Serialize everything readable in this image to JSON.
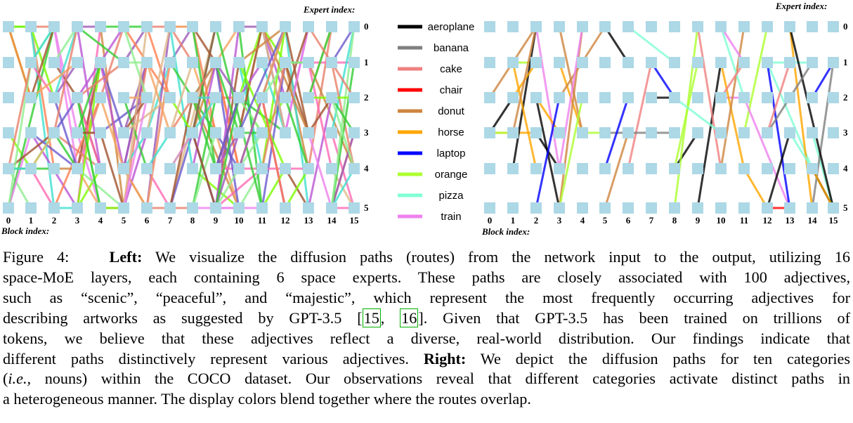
{
  "figure": {
    "left_panel": {
      "expert_axis_title": "Expert index:",
      "block_axis_title": "Block index:",
      "block_ticks": [
        "0",
        "1",
        "2",
        "3",
        "4",
        "5",
        "6",
        "7",
        "8",
        "9",
        "10",
        "11",
        "12",
        "13",
        "14",
        "15"
      ],
      "expert_ticks": [
        "0",
        "1",
        "2",
        "3",
        "4",
        "5"
      ]
    },
    "right_panel": {
      "expert_axis_title": "Expert index:",
      "block_axis_title": "Block index:",
      "block_ticks": [
        "0",
        "1",
        "2",
        "3",
        "4",
        "5",
        "6",
        "7",
        "8",
        "9",
        "10",
        "11",
        "12",
        "13",
        "14",
        "15"
      ],
      "expert_ticks": [
        "0",
        "1",
        "2",
        "3",
        "4",
        "5"
      ]
    },
    "legend": [
      {
        "label": "aeroplane",
        "color": "#000000"
      },
      {
        "label": "banana",
        "color": "#808080"
      },
      {
        "label": "cake",
        "color": "#f08080"
      },
      {
        "label": "chair",
        "color": "#ff0000"
      },
      {
        "label": "donut",
        "color": "#cd853f"
      },
      {
        "label": "horse",
        "color": "#ffa500"
      },
      {
        "label": "laptop",
        "color": "#0000ff"
      },
      {
        "label": "orange",
        "color": "#adff2f"
      },
      {
        "label": "pizza",
        "color": "#7fffd4"
      },
      {
        "label": "train",
        "color": "#ee82ee"
      }
    ],
    "node_color": "#add8e6"
  },
  "caption": {
    "line1_prefix": "Figure 4:",
    "line1_bold": "Left:",
    "line1_rest": "We visualize the diffusion paths (routes) from the network input to the output, utilizing 16",
    "line2": "space-MoE layers, each containing 6 space experts.  These paths are closely associated with 100 adjectives,",
    "line3": "such as “scenic”, “peaceful”, and “majestic”, which represent the most frequently occurring adjectives for",
    "line4_pre": "describing artworks as suggested by GPT-3.5 [",
    "ref1": "15",
    "ref_sep": ", ",
    "ref2": "16",
    "line4_post": "].  Given that GPT-3.5 has been trained on trillions of",
    "line5": "tokens, we believe that these adjectives reflect a diverse, real-world distribution.  Our findings indicate that",
    "line6_pre": "different paths distinctively represent various adjectives.",
    "line6_bold": "Right:",
    "line6_post": "We depict the diffusion paths for ten categories",
    "line7_open": "(",
    "line7_ital": "i.e.,",
    "line7_post": "nouns) within the COCO dataset. Our observations reveal that different categories activate distinct paths in",
    "line8": "a heterogeneous manner. The display colors blend together where the routes overlap."
  }
}
